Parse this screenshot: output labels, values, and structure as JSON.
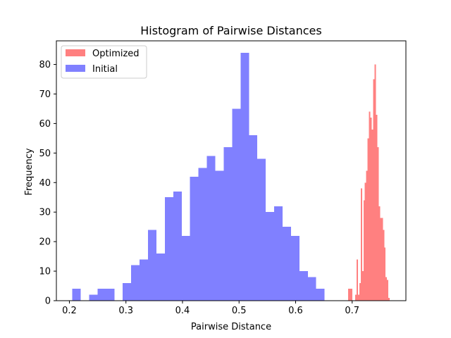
{
  "chart_data": {
    "type": "histogram",
    "title": "Histogram of Pairwise Distances",
    "xlabel": "Pairwise Distance",
    "ylabel": "Frequency",
    "xlim": [
      0.177,
      0.795
    ],
    "ylim": [
      0,
      88
    ],
    "xticks": [
      0.2,
      0.3,
      0.4,
      0.5,
      0.6,
      0.7
    ],
    "yticks": [
      0,
      10,
      20,
      30,
      40,
      50,
      60,
      70,
      80
    ],
    "grid": false,
    "legend": {
      "position": "top-left"
    },
    "series": [
      {
        "name": "Optimized",
        "color": "#ff8080",
        "bin_start": 0.693,
        "bin_width": 0.00245,
        "counts": [
          4,
          4,
          4,
          0,
          0,
          2,
          14,
          2,
          6,
          38,
          10,
          34,
          40,
          44,
          55,
          64,
          62,
          58,
          75,
          80,
          63,
          52,
          32,
          28,
          28,
          24,
          18,
          8,
          7,
          1
        ]
      },
      {
        "name": "Initial",
        "color": "#8080ff",
        "bin_start": 0.2052,
        "bin_width": 0.01487,
        "counts": [
          4,
          0,
          2,
          4,
          4,
          0,
          6,
          12,
          14,
          24,
          16,
          35,
          37,
          22,
          42,
          45,
          49,
          44,
          52,
          65,
          84,
          56,
          48,
          30,
          32,
          25,
          22,
          10,
          8,
          4
        ]
      }
    ]
  }
}
